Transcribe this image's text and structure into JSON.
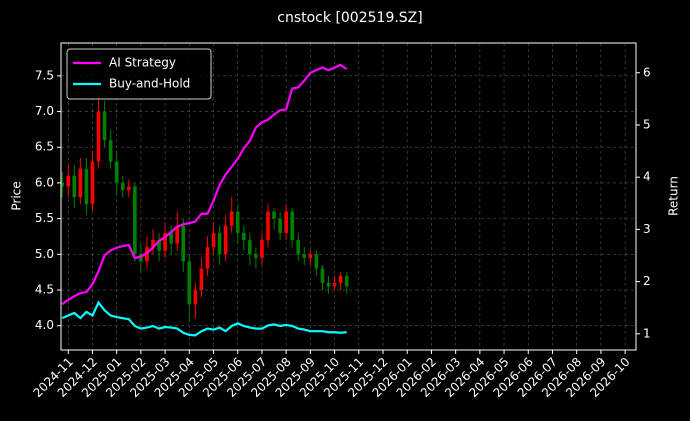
{
  "chart_data": {
    "type": "candlestick",
    "title": "cnstock [002519.SZ]",
    "y_label": "Price",
    "y2_label": "Return",
    "x": [
      -0.25,
      0,
      0.25,
      0.5,
      0.75,
      1,
      1.25,
      1.5,
      1.75,
      2,
      2.25,
      2.5,
      2.75,
      3,
      3.25,
      3.5,
      3.75,
      4,
      4.25,
      4.5,
      4.75,
      5,
      5.25,
      5.5,
      5.75,
      6,
      6.25,
      6.5,
      6.75,
      7,
      7.25,
      7.5,
      7.75,
      8,
      8.25,
      8.5,
      8.75,
      9,
      9.25,
      9.5,
      9.75,
      10,
      10.25,
      10.5,
      10.75,
      11,
      11.25,
      11.5
    ],
    "open": [
      6.0,
      5.95,
      6.1,
      5.8,
      6.2,
      5.7,
      6.3,
      7.0,
      6.6,
      6.3,
      6.0,
      5.9,
      5.95,
      5.0,
      4.9,
      5.1,
      5.2,
      5.05,
      5.3,
      5.15,
      5.4,
      4.9,
      4.3,
      4.5,
      4.8,
      5.1,
      5.3,
      5.0,
      5.4,
      5.6,
      5.3,
      5.2,
      5.0,
      4.95,
      5.2,
      5.6,
      5.5,
      5.3,
      5.6,
      5.2,
      5.0,
      4.95,
      5.0,
      4.8,
      4.6,
      4.55,
      4.6,
      4.7
    ],
    "high": [
      6.15,
      6.25,
      6.25,
      6.35,
      6.35,
      6.45,
      7.25,
      7.15,
      6.75,
      6.45,
      6.1,
      6.05,
      6.0,
      5.15,
      5.25,
      5.35,
      5.3,
      5.45,
      5.4,
      5.6,
      5.5,
      5.0,
      4.6,
      4.95,
      5.25,
      5.45,
      5.4,
      5.55,
      5.8,
      5.7,
      5.4,
      5.3,
      5.1,
      5.3,
      5.7,
      5.65,
      5.6,
      5.7,
      5.65,
      5.3,
      5.1,
      5.05,
      5.05,
      4.85,
      4.7,
      4.7,
      4.75,
      4.75
    ],
    "low": [
      5.8,
      5.8,
      5.65,
      5.7,
      5.55,
      5.6,
      6.2,
      6.5,
      6.2,
      5.85,
      5.8,
      5.8,
      4.9,
      4.75,
      4.8,
      5.0,
      4.9,
      4.95,
      5.0,
      5.05,
      4.75,
      4.05,
      4.1,
      4.4,
      4.7,
      5.0,
      4.85,
      4.9,
      5.3,
      5.15,
      5.05,
      4.85,
      4.8,
      4.85,
      5.1,
      5.35,
      5.2,
      5.2,
      5.1,
      4.9,
      4.85,
      4.85,
      4.7,
      4.5,
      4.45,
      4.5,
      4.5,
      4.45
    ],
    "close": [
      5.95,
      6.1,
      5.8,
      6.2,
      5.7,
      6.3,
      7.0,
      6.6,
      6.3,
      6.0,
      5.9,
      5.95,
      5.0,
      4.9,
      5.1,
      5.2,
      5.05,
      5.3,
      5.15,
      5.4,
      4.9,
      4.3,
      4.5,
      4.8,
      5.1,
      5.3,
      5.0,
      5.4,
      5.6,
      5.3,
      5.2,
      5.0,
      4.95,
      5.2,
      5.6,
      5.5,
      5.3,
      5.6,
      5.2,
      5.0,
      4.95,
      5.0,
      4.8,
      4.6,
      4.55,
      4.6,
      4.7,
      4.55
    ],
    "up_color": "#ff0000",
    "down_color": "#008000",
    "series": [
      {
        "name": "AI Strategy",
        "color": "#ff00ff",
        "axis": "y2",
        "values": [
          1.57,
          1.65,
          1.72,
          1.78,
          1.8,
          1.95,
          2.2,
          2.5,
          2.6,
          2.65,
          2.68,
          2.7,
          2.45,
          2.48,
          2.55,
          2.65,
          2.78,
          2.85,
          2.95,
          3.05,
          3.1,
          3.12,
          3.15,
          3.3,
          3.3,
          3.55,
          3.85,
          4.05,
          4.2,
          4.35,
          4.55,
          4.7,
          4.95,
          5.05,
          5.1,
          5.2,
          5.28,
          5.3,
          5.7,
          5.72,
          5.85,
          6.0,
          6.05,
          6.1,
          6.05,
          6.1,
          6.15,
          6.07
        ]
      },
      {
        "name": "Buy-and-Hold",
        "color": "#00ffff",
        "axis": "y2",
        "values": [
          1.3,
          1.35,
          1.4,
          1.3,
          1.42,
          1.35,
          1.6,
          1.45,
          1.35,
          1.32,
          1.3,
          1.28,
          1.15,
          1.1,
          1.12,
          1.15,
          1.1,
          1.13,
          1.12,
          1.1,
          1.02,
          0.98,
          0.97,
          1.05,
          1.1,
          1.08,
          1.12,
          1.05,
          1.15,
          1.2,
          1.15,
          1.12,
          1.1,
          1.1,
          1.16,
          1.18,
          1.15,
          1.17,
          1.15,
          1.1,
          1.08,
          1.05,
          1.05,
          1.05,
          1.03,
          1.03,
          1.02,
          1.03
        ]
      }
    ],
    "xlim": [
      -0.3,
      23.45
    ],
    "xticks": [
      {
        "value": 0,
        "label": "2024-11"
      },
      {
        "value": 1,
        "label": "2024-12"
      },
      {
        "value": 2,
        "label": "2025-01"
      },
      {
        "value": 3,
        "label": "2025-02"
      },
      {
        "value": 4,
        "label": "2025-03"
      },
      {
        "value": 5,
        "label": "2025-04"
      },
      {
        "value": 6,
        "label": "2025-05"
      },
      {
        "value": 7,
        "label": "2025-06"
      },
      {
        "value": 8,
        "label": "2025-07"
      },
      {
        "value": 9,
        "label": "2025-08"
      },
      {
        "value": 10,
        "label": "2025-09"
      },
      {
        "value": 11,
        "label": "2025-10"
      },
      {
        "value": 12,
        "label": "2025-11"
      },
      {
        "value": 13,
        "label": "2025-12"
      },
      {
        "value": 14,
        "label": "2026-01"
      },
      {
        "value": 15,
        "label": "2026-02"
      },
      {
        "value": 16,
        "label": "2026-03"
      },
      {
        "value": 17,
        "label": "2026-04"
      },
      {
        "value": 18,
        "label": "2026-05"
      },
      {
        "value": 19,
        "label": "2026-06"
      },
      {
        "value": 20,
        "label": "2026-07"
      },
      {
        "value": 21,
        "label": "2026-08"
      },
      {
        "value": 22,
        "label": "2026-09"
      },
      {
        "value": 23,
        "label": "2026-10"
      }
    ],
    "ylim": [
      3.66,
      7.96
    ],
    "yticks": [
      {
        "value": 4,
        "label": "4.0"
      },
      4.5,
      {
        "value": 5,
        "label": "5.0"
      },
      5.5,
      {
        "value": 6,
        "label": "6.0"
      },
      6.5,
      {
        "value": 7,
        "label": "7.0"
      },
      7.5
    ],
    "y2lim": [
      0.69,
      6.57
    ],
    "y2ticks": [
      1,
      2,
      3,
      4,
      5,
      6
    ],
    "grid": true,
    "legend": "upper left"
  }
}
